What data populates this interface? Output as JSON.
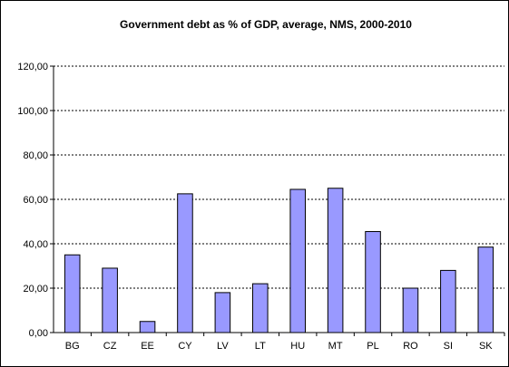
{
  "chart_data": {
    "type": "bar",
    "title": "Government debt as % of GDP, average, NMS, 2000-2010",
    "xlabel": "",
    "ylabel": "",
    "categories": [
      "BG",
      "CZ",
      "EE",
      "CY",
      "LV",
      "LT",
      "HU",
      "MT",
      "PL",
      "RO",
      "SI",
      "SK"
    ],
    "values": [
      35.0,
      29.0,
      5.0,
      62.5,
      18.0,
      22.0,
      64.5,
      65.0,
      45.5,
      20.0,
      28.0,
      38.5
    ],
    "ylim": [
      0,
      120
    ],
    "yticks": [
      0,
      20,
      40,
      60,
      80,
      100,
      120
    ],
    "ytick_labels": [
      "0,00",
      "20,00",
      "40,00",
      "60,00",
      "80,00",
      "100,00",
      "120,00"
    ],
    "grid": "horizontal dashed",
    "legend": "none",
    "bar_color": "#9999ff",
    "bar_edge_color": "#000000"
  }
}
